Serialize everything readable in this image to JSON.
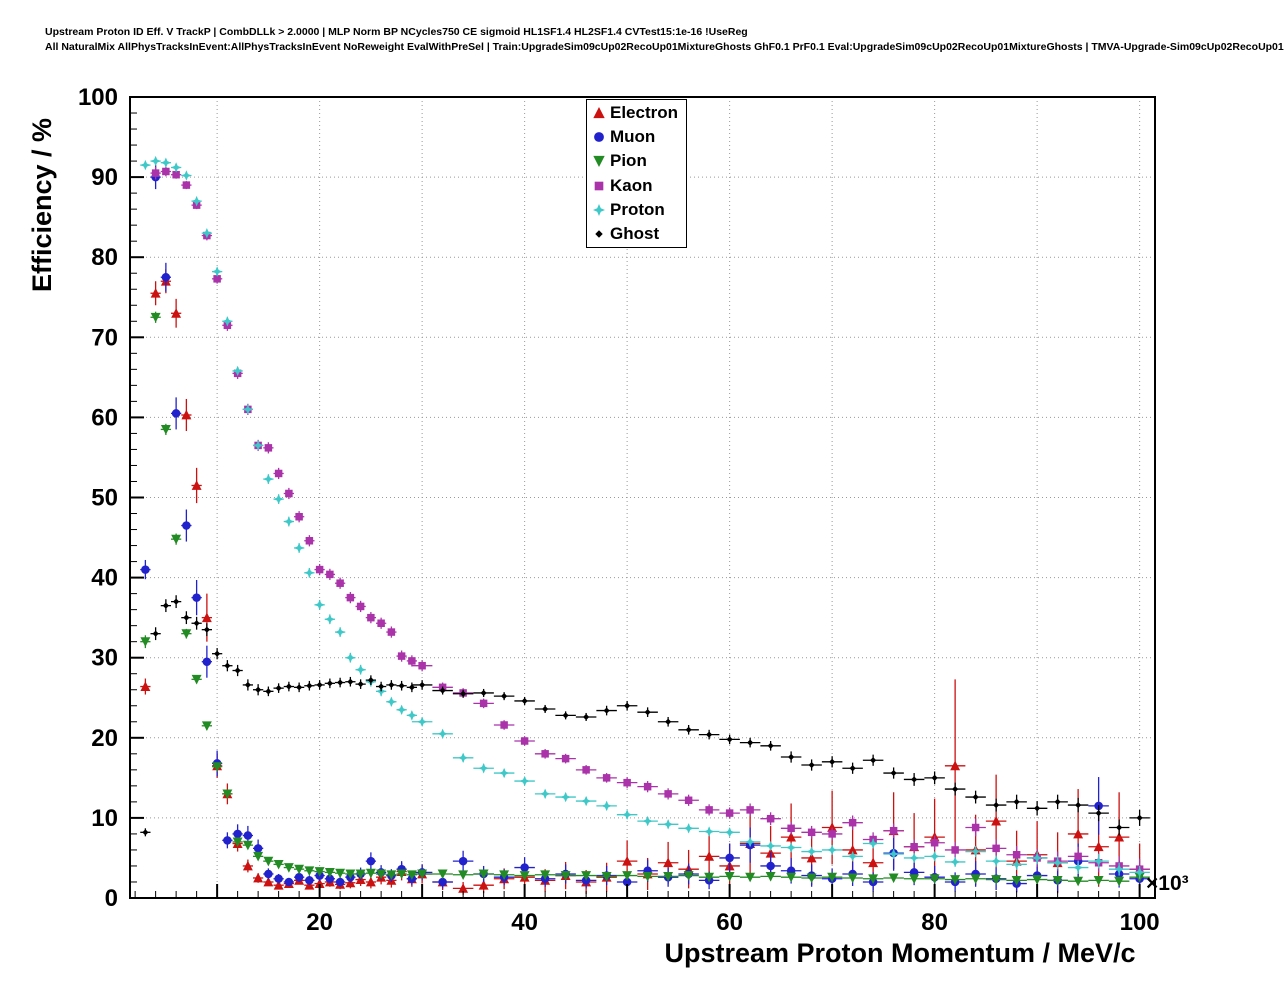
{
  "header": {
    "line1": "Upstream Proton ID Eff. V TrackP | CombDLLk > 2.0000 | MLP Norm BP NCycles750 CE sigmoid HL1SF1.4 HL2SF1.4 CVTest15:1e-16 !UseReg",
    "line2": "All NaturalMix AllPhysTracksInEvent:AllPhysTracksInEvent NoReweight EvalWithPreSel | Train:UpgradeSim09cUp02RecoUp01MixtureGhosts GhF0.1 PrF0.1 Eval:UpgradeSim09cUp02RecoUp01MixtureGhosts | TMVA-Upgrade-Sim09cUp02RecoUp01"
  },
  "axes": {
    "x": {
      "label": "Upstream Proton Momentum / MeV/c",
      "ticks": [
        20,
        40,
        60,
        80,
        100
      ],
      "multiplier": "×10³",
      "min": 1.5,
      "max": 101.5
    },
    "y": {
      "label": "Efficiency / %",
      "ticks": [
        0,
        10,
        20,
        30,
        40,
        50,
        60,
        70,
        80,
        90,
        100
      ],
      "min": 0,
      "max": 100
    }
  },
  "legend": {
    "entries": [
      {
        "label": "Electron",
        "marker": "triangle-up",
        "color": "#cc1111"
      },
      {
        "label": "Muon",
        "marker": "circle",
        "color": "#2222cc"
      },
      {
        "label": "Pion",
        "marker": "triangle-down",
        "color": "#238b23"
      },
      {
        "label": "Kaon",
        "marker": "square",
        "color": "#aa33aa"
      },
      {
        "label": "Proton",
        "marker": "star4",
        "color": "#3fc8c8"
      },
      {
        "label": "Ghost",
        "marker": "diamond",
        "color": "#000000"
      }
    ]
  },
  "chart_data": {
    "type": "scatter",
    "title": "Upstream Proton ID Eff. V TrackP | CombDLLk > 2.0000",
    "xlabel": "Upstream Proton Momentum / MeV/c",
    "ylabel": "Efficiency / %",
    "x_unit": "10^3 MeV/c",
    "xlim": [
      1.5,
      101.5
    ],
    "ylim": [
      0,
      100
    ],
    "grid": true,
    "legend_position": "top-center",
    "x": [
      3,
      4,
      5,
      6,
      7,
      8,
      9,
      10,
      11,
      12,
      13,
      14,
      15,
      16,
      17,
      18,
      19,
      20,
      21,
      22,
      23,
      24,
      25,
      26,
      27,
      28,
      29,
      30,
      32,
      34,
      36,
      38,
      40,
      42,
      44,
      46,
      48,
      50,
      52,
      54,
      56,
      58,
      60,
      62,
      64,
      66,
      68,
      70,
      72,
      74,
      76,
      78,
      80,
      82,
      84,
      86,
      88,
      90,
      92,
      94,
      96,
      98,
      100
    ],
    "series": [
      {
        "name": "Electron",
        "color": "#cc1111",
        "marker": "triangle-up",
        "y": [
          26.4,
          75.5,
          77.0,
          73.0,
          60.3,
          51.5,
          35.0,
          16.5,
          13.0,
          6.8,
          4.0,
          2.5,
          2.0,
          1.6,
          1.8,
          2.2,
          1.6,
          1.8,
          2.0,
          1.7,
          1.9,
          2.3,
          2.0,
          2.6,
          2.2,
          3.3,
          2.4,
          3.0,
          2.0,
          1.2,
          1.6,
          2.4,
          2.6,
          2.2,
          2.8,
          2.0,
          2.6,
          4.6,
          3.0,
          4.4,
          3.6,
          5.2,
          4.0,
          6.8,
          5.6,
          7.6,
          5.0,
          8.8,
          6.0,
          4.4,
          8.4,
          6.4,
          7.6,
          16.5,
          6.0,
          9.6,
          4.6,
          5.4,
          4.4,
          8.0,
          6.4,
          7.6,
          3.6
        ],
        "yerr": [
          1.0,
          1.5,
          1.5,
          1.8,
          2.0,
          2.2,
          3.0,
          1.5,
          1.3,
          1.0,
          0.8,
          0.6,
          0.5,
          0.4,
          0.5,
          0.5,
          0.5,
          0.6,
          0.6,
          0.6,
          0.7,
          0.8,
          0.8,
          0.9,
          0.9,
          1.1,
          1.0,
          1.2,
          1.0,
          0.8,
          1.0,
          1.3,
          1.5,
          1.4,
          1.7,
          1.5,
          1.8,
          2.6,
          2.0,
          2.6,
          2.4,
          3.0,
          2.8,
          3.8,
          3.4,
          4.2,
          3.4,
          4.6,
          4.0,
          3.4,
          4.8,
          4.2,
          4.8,
          10.8,
          4.4,
          5.8,
          3.8,
          4.2,
          3.8,
          5.6,
          5.0,
          5.6,
          3.2
        ]
      },
      {
        "name": "Muon",
        "color": "#2222cc",
        "marker": "circle",
        "y": [
          41.0,
          90.0,
          77.5,
          60.5,
          46.5,
          37.5,
          29.5,
          16.8,
          7.2,
          8.0,
          7.8,
          6.2,
          3.0,
          2.4,
          2.0,
          2.6,
          2.2,
          2.8,
          2.4,
          2.0,
          2.6,
          3.0,
          4.6,
          3.2,
          2.8,
          3.6,
          2.4,
          3.2,
          2.0,
          4.6,
          3.0,
          2.6,
          3.8,
          2.4,
          3.0,
          2.2,
          2.8,
          2.0,
          3.4,
          2.6,
          3.0,
          2.2,
          5.0,
          6.6,
          4.0,
          3.4,
          2.8,
          2.4,
          3.0,
          2.0,
          5.6,
          3.2,
          2.6,
          2.0,
          3.0,
          2.4,
          1.8,
          2.8,
          2.2,
          4.6,
          11.5,
          3.0,
          2.4
        ],
        "yerr": [
          1.2,
          1.5,
          1.8,
          2.0,
          2.0,
          2.2,
          2.0,
          1.6,
          1.0,
          1.2,
          1.2,
          1.1,
          0.7,
          0.6,
          0.5,
          0.6,
          0.6,
          0.7,
          0.6,
          0.6,
          0.7,
          0.8,
          1.1,
          0.9,
          0.8,
          1.0,
          0.8,
          1.0,
          0.8,
          1.3,
          1.0,
          1.0,
          1.3,
          1.0,
          1.2,
          1.0,
          1.2,
          1.0,
          1.4,
          1.2,
          1.3,
          1.1,
          1.8,
          2.2,
          1.7,
          1.6,
          1.4,
          1.3,
          1.5,
          1.2,
          2.2,
          1.6,
          1.4,
          1.2,
          1.6,
          1.4,
          1.1,
          1.6,
          1.4,
          2.2,
          3.6,
          1.7,
          1.5
        ]
      },
      {
        "name": "Pion",
        "color": "#238b23",
        "marker": "triangle-down",
        "y": [
          32.0,
          72.5,
          58.5,
          44.8,
          33.0,
          27.3,
          21.5,
          16.4,
          13.0,
          7.0,
          6.6,
          5.2,
          4.6,
          4.2,
          3.8,
          3.6,
          3.4,
          3.3,
          3.2,
          3.1,
          3.0,
          3.0,
          3.1,
          3.0,
          2.9,
          3.0,
          2.9,
          3.0,
          3.0,
          2.9,
          3.0,
          2.9,
          2.8,
          2.9,
          2.8,
          2.8,
          2.7,
          2.8,
          2.7,
          2.7,
          2.8,
          2.6,
          2.7,
          2.6,
          2.7,
          2.6,
          2.5,
          2.6,
          2.5,
          2.4,
          2.5,
          2.4,
          2.4,
          2.3,
          2.4,
          2.3,
          2.2,
          2.3,
          2.2,
          2.1,
          2.2,
          2.1,
          2.6
        ],
        "yerr": [
          0.8,
          0.7,
          0.7,
          0.7,
          0.6,
          0.5,
          0.5,
          0.4,
          0.4,
          0.3,
          0.3,
          0.3,
          0.3,
          0.2,
          0.2,
          0.2,
          0.2,
          0.2,
          0.2,
          0.2,
          0.2,
          0.2,
          0.2,
          0.2,
          0.2,
          0.2,
          0.2,
          0.2,
          0.2,
          0.2,
          0.2,
          0.2,
          0.2,
          0.2,
          0.2,
          0.2,
          0.2,
          0.2,
          0.2,
          0.2,
          0.2,
          0.2,
          0.2,
          0.2,
          0.2,
          0.2,
          0.2,
          0.2,
          0.2,
          0.2,
          0.3,
          0.3,
          0.3,
          0.3,
          0.3,
          0.3,
          0.3,
          0.3,
          0.3,
          0.3,
          0.3,
          0.3,
          0.4
        ]
      },
      {
        "name": "Kaon",
        "color": "#aa33aa",
        "marker": "square",
        "y": [
          null,
          90.5,
          90.7,
          90.3,
          89.0,
          86.5,
          82.7,
          77.3,
          71.5,
          65.5,
          61.0,
          56.5,
          56.2,
          53.0,
          50.5,
          47.6,
          44.6,
          41.0,
          40.4,
          39.3,
          37.5,
          36.4,
          35.0,
          34.3,
          33.2,
          30.2,
          29.6,
          29.0,
          26.3,
          25.6,
          24.3,
          21.6,
          19.6,
          18.0,
          17.4,
          16.0,
          15.0,
          14.4,
          13.9,
          13.0,
          12.2,
          11.0,
          10.6,
          11.0,
          9.9,
          8.7,
          8.2,
          8.0,
          9.4,
          7.3,
          8.4,
          6.4,
          6.9,
          6.0,
          8.8,
          6.2,
          5.4,
          5.0,
          4.6,
          5.2,
          4.4,
          4.0,
          3.6
        ],
        "yerr": [
          null,
          0.8,
          0.6,
          0.5,
          0.5,
          0.5,
          0.6,
          0.6,
          0.7,
          0.7,
          0.7,
          0.7,
          0.7,
          0.7,
          0.7,
          0.7,
          0.7,
          0.7,
          0.7,
          0.7,
          0.7,
          0.7,
          0.7,
          0.7,
          0.7,
          0.7,
          0.7,
          0.7,
          0.6,
          0.6,
          0.6,
          0.6,
          0.6,
          0.6,
          0.6,
          0.6,
          0.6,
          0.7,
          0.7,
          0.7,
          0.7,
          0.7,
          0.7,
          0.8,
          0.8,
          0.8,
          0.8,
          0.8,
          0.9,
          0.9,
          0.9,
          0.9,
          0.9,
          1.0,
          1.1,
          1.1,
          1.1,
          1.1,
          1.2,
          1.2,
          1.2,
          1.2,
          1.3
        ]
      },
      {
        "name": "Proton",
        "color": "#3fc8c8",
        "marker": "star4",
        "y": [
          91.5,
          92.0,
          91.8,
          91.2,
          90.2,
          87.0,
          83.0,
          78.2,
          72.0,
          65.8,
          61.0,
          56.5,
          52.3,
          49.8,
          47.0,
          43.7,
          40.6,
          36.6,
          34.8,
          33.2,
          30.0,
          28.5,
          27.0,
          25.8,
          24.5,
          23.5,
          22.8,
          22.0,
          20.5,
          17.5,
          16.2,
          15.6,
          14.6,
          13.0,
          12.6,
          12.1,
          11.5,
          10.4,
          9.6,
          9.2,
          8.7,
          8.3,
          8.2,
          7.0,
          6.5,
          6.3,
          5.8,
          6.0,
          5.2,
          6.8,
          5.5,
          5.0,
          5.2,
          4.5,
          5.8,
          4.6,
          4.2,
          5.0,
          4.4,
          3.8,
          4.6,
          3.6,
          3.2
        ],
        "yerr": [
          0.4,
          0.3,
          0.3,
          0.3,
          0.3,
          0.4,
          0.4,
          0.5,
          0.5,
          0.5,
          0.6,
          0.6,
          0.6,
          0.6,
          0.6,
          0.6,
          0.6,
          0.6,
          0.6,
          0.6,
          0.6,
          0.6,
          0.6,
          0.6,
          0.5,
          0.5,
          0.5,
          0.5,
          0.5,
          0.5,
          0.5,
          0.5,
          0.5,
          0.5,
          0.5,
          0.5,
          0.5,
          0.5,
          0.5,
          0.5,
          0.5,
          0.5,
          0.5,
          0.5,
          0.5,
          0.5,
          0.5,
          0.6,
          0.6,
          0.6,
          0.6,
          0.6,
          0.6,
          0.6,
          0.7,
          0.7,
          0.7,
          0.8,
          0.8,
          0.8,
          0.9,
          0.8,
          0.8
        ]
      },
      {
        "name": "Ghost",
        "color": "#000000",
        "marker": "diamond",
        "y": [
          8.2,
          33.0,
          36.5,
          37.0,
          35.0,
          34.3,
          33.5,
          30.5,
          29.0,
          28.4,
          26.6,
          26.0,
          25.8,
          26.2,
          26.4,
          26.3,
          26.5,
          26.6,
          26.8,
          26.9,
          27.0,
          26.7,
          27.2,
          26.4,
          26.6,
          26.5,
          26.3,
          26.6,
          25.9,
          25.5,
          25.6,
          25.2,
          24.6,
          23.6,
          22.8,
          22.6,
          23.4,
          24.0,
          23.2,
          22.0,
          21.0,
          20.4,
          19.8,
          19.4,
          19.0,
          17.6,
          16.6,
          17.0,
          16.2,
          17.2,
          15.6,
          14.8,
          15.0,
          13.6,
          12.6,
          11.6,
          12.0,
          11.2,
          12.0,
          11.6,
          10.6,
          8.8,
          10.0
        ],
        "yerr": [
          0.5,
          0.8,
          0.8,
          0.8,
          0.8,
          0.8,
          0.8,
          0.7,
          0.7,
          0.7,
          0.7,
          0.7,
          0.6,
          0.6,
          0.6,
          0.6,
          0.6,
          0.6,
          0.6,
          0.6,
          0.6,
          0.6,
          0.6,
          0.6,
          0.6,
          0.6,
          0.6,
          0.6,
          0.5,
          0.5,
          0.5,
          0.5,
          0.5,
          0.5,
          0.5,
          0.5,
          0.6,
          0.6,
          0.6,
          0.6,
          0.6,
          0.6,
          0.6,
          0.6,
          0.6,
          0.7,
          0.7,
          0.7,
          0.7,
          0.7,
          0.7,
          0.8,
          0.8,
          0.8,
          0.8,
          0.8,
          0.9,
          0.9,
          0.9,
          0.9,
          1.0,
          1.0,
          1.0
        ]
      }
    ]
  }
}
